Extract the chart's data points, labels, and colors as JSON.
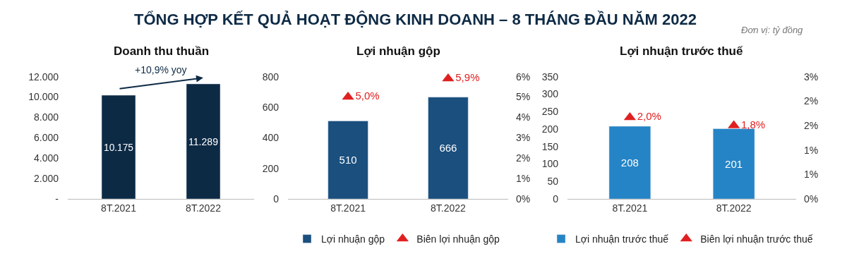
{
  "chart_data": [
    {
      "type": "bar",
      "title": "Doanh thu thuần",
      "categories": [
        "8T.2021",
        "8T.2022"
      ],
      "series": [
        {
          "color": "#0d2a45",
          "values": [
            10175,
            11289
          ],
          "value_labels": [
            "10.175",
            "11.289"
          ]
        }
      ],
      "ylim": [
        0,
        12000
      ],
      "yticks": [
        {
          "value": 0,
          "label": "-"
        },
        {
          "value": 2000,
          "label": "2.000"
        },
        {
          "value": 4000,
          "label": "4.000"
        },
        {
          "value": 6000,
          "label": "6.000"
        },
        {
          "value": 8000,
          "label": "8.000"
        },
        {
          "value": 10000,
          "label": "10.000"
        },
        {
          "value": 12000,
          "label": "12.000"
        }
      ],
      "annotations": [
        "TỔNG HỢP KẾT QUẢ HOẠT ĐỘNG KINH DOANH – 8 THÁNG ĐẦU NĂM 2022",
        "Đơn vị: tỷ đồng",
        "+10,9% yoy"
      ],
      "legend": false
    },
    {
      "type": "bar",
      "title": "Lợi nhuận gộp",
      "categories": [
        "8T.2021",
        "8T.2022"
      ],
      "series": [
        {
          "name": "Lợi nhuận gộp",
          "color": "#1a4f7e",
          "values": [
            510,
            666
          ],
          "value_labels": [
            "510",
            "666"
          ]
        },
        {
          "name": "Biên lợi nhuận gộp",
          "type": "scatter",
          "axis": "y2",
          "marker": "triangle",
          "color": "#e02020",
          "values": [
            5.0,
            5.9
          ],
          "value_labels": [
            "5,0%",
            "5,9%"
          ]
        }
      ],
      "ylim": [
        0,
        800
      ],
      "yticks": [
        0,
        200,
        400,
        600,
        800
      ],
      "y2lim": [
        0,
        6
      ],
      "y2ticks": [
        {
          "value": 0,
          "label": "0%"
        },
        {
          "value": 1,
          "label": "1%"
        },
        {
          "value": 2,
          "label": "2%"
        },
        {
          "value": 3,
          "label": "3%"
        },
        {
          "value": 4,
          "label": "4%"
        },
        {
          "value": 5,
          "label": "5%"
        },
        {
          "value": 6,
          "label": "6%"
        }
      ],
      "legend": "bottom"
    },
    {
      "type": "bar",
      "title": "Lợi nhuận trước thuế",
      "categories": [
        "8T.2021",
        "8T.2022"
      ],
      "series": [
        {
          "name": "Lợi nhuận trước thuế",
          "color": "#2584c6",
          "values": [
            208,
            201
          ],
          "value_labels": [
            "208",
            "201"
          ]
        },
        {
          "name": "Biên lợi nhuận trước thuế",
          "type": "scatter",
          "axis": "y2",
          "marker": "triangle",
          "color": "#e02020",
          "values": [
            2.0,
            1.8
          ],
          "value_labels": [
            "2,0%",
            "1,8%"
          ]
        }
      ],
      "ylim": [
        0,
        350
      ],
      "yticks": [
        0,
        50,
        100,
        150,
        200,
        250,
        300,
        350
      ],
      "y2lim": [
        0,
        3
      ],
      "y2ticks": [
        {
          "value": 0,
          "label": "0%"
        },
        {
          "value": 0.6,
          "label": "1%"
        },
        {
          "value": 1.2,
          "label": "1%"
        },
        {
          "value": 1.8,
          "label": "2%"
        },
        {
          "value": 2.4,
          "label": "2%"
        },
        {
          "value": 3.0,
          "label": "3%"
        }
      ],
      "legend": "bottom"
    }
  ]
}
